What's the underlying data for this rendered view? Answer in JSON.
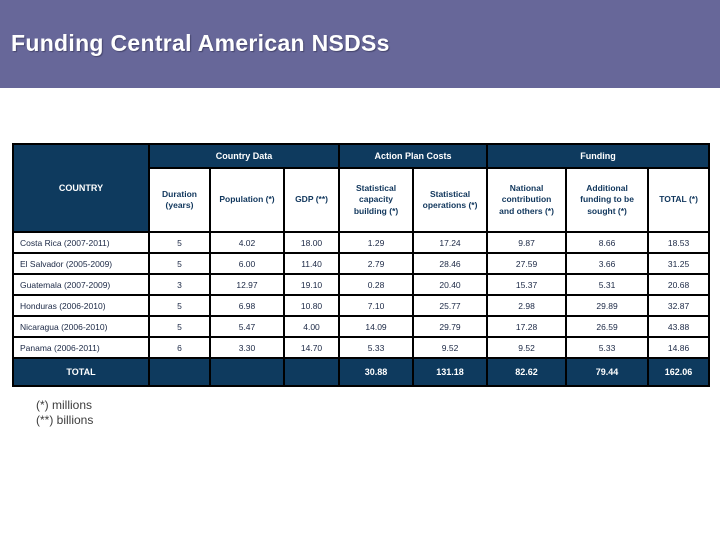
{
  "title": "Funding Central American NSDSs",
  "colors": {
    "banner": "#676799",
    "table_header_navy": "#0e3a5e",
    "border": "#000000",
    "body_text": "#1a2744"
  },
  "table": {
    "corner_header": "COUNTRY",
    "groups": [
      {
        "label": "Country Data",
        "span": 3
      },
      {
        "label": "Action Plan Costs",
        "span": 2
      },
      {
        "label": "Funding",
        "span": 3
      }
    ],
    "columns": [
      "Duration (years)",
      "Population (*)",
      "GDP (**)",
      "Statistical capacity building (*)",
      "Statistical operations (*)",
      "National contribution and others  (*)",
      "Additional funding to be sought (*)",
      "TOTAL (*)"
    ],
    "rows": [
      {
        "country": "Costa Rica (2007-2011)",
        "values": [
          "5",
          "4.02",
          "18.00",
          "1.29",
          "17.24",
          "9.87",
          "8.66",
          "18.53"
        ]
      },
      {
        "country": "El Salvador (2005-2009)",
        "values": [
          "5",
          "6.00",
          "11.40",
          "2.79",
          "28.46",
          "27.59",
          "3.66",
          "31.25"
        ]
      },
      {
        "country": "Guatemala (2007-2009)",
        "values": [
          "3",
          "12.97",
          "19.10",
          "0.28",
          "20.40",
          "15.37",
          "5.31",
          "20.68"
        ]
      },
      {
        "country": "Honduras (2006-2010)",
        "values": [
          "5",
          "6.98",
          "10.80",
          "7.10",
          "25.77",
          "2.98",
          "29.89",
          "32.87"
        ]
      },
      {
        "country": "Nicaragua (2006-2010)",
        "values": [
          "5",
          "5.47",
          "4.00",
          "14.09",
          "29.79",
          "17.28",
          "26.59",
          "43.88"
        ]
      },
      {
        "country": "Panama (2006-2011)",
        "values": [
          "6",
          "3.30",
          "14.70",
          "5.33",
          "9.52",
          "9.52",
          "5.33",
          "14.86"
        ]
      }
    ],
    "total_row": {
      "label": "TOTAL",
      "values": [
        "",
        "",
        "",
        "30.88",
        "131.18",
        "82.62",
        "79.44",
        "162.06"
      ]
    }
  },
  "footnotes": [
    "(*) millions",
    "(**) billions"
  ]
}
